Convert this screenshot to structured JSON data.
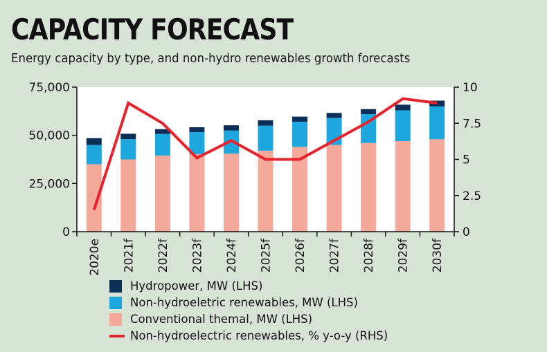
{
  "chart_data": {
    "type": "bar",
    "title": "CAPACITY FORECAST",
    "subtitle": "Energy capacity by type, and non-hydro renewables growth forecasts",
    "categories": [
      "2020e",
      "2021f",
      "2022f",
      "2023f",
      "2024f",
      "2025f",
      "2026f",
      "2027f",
      "2028f",
      "2029f",
      "2030f"
    ],
    "series": [
      {
        "name": "Conventional themal, MW (LHS)",
        "color": "#f5a99a",
        "axis": "left",
        "stack": true,
        "values": [
          35000,
          37500,
          39500,
          40200,
          40500,
          42000,
          44000,
          45000,
          46000,
          47000,
          48000
        ]
      },
      {
        "name": "Non-hydroeletric renewables, MW (LHS)",
        "color": "#1ea6df",
        "axis": "left",
        "stack": true,
        "values": [
          10000,
          10500,
          11200,
          11500,
          12000,
          13000,
          13000,
          14000,
          15000,
          16000,
          17000
        ]
      },
      {
        "name": "Hydropower, MW (LHS)",
        "color": "#0d2f57",
        "axis": "left",
        "stack": true,
        "values": [
          3500,
          2800,
          2500,
          2500,
          2700,
          2800,
          2700,
          2600,
          2600,
          2900,
          3000
        ]
      },
      {
        "name": "Non-hydroelectric renewables, % y-o-y (RHS)",
        "color": "#e4232d",
        "axis": "right",
        "type": "line",
        "values": [
          1.5,
          8.9,
          7.5,
          5.1,
          6.3,
          5.0,
          5.0,
          6.3,
          7.6,
          9.2,
          8.9
        ]
      }
    ],
    "y_left": {
      "min": 0,
      "max": 75000,
      "ticks": [
        0,
        25000,
        50000,
        75000
      ],
      "tick_labels": [
        "0",
        "25,000",
        "50,000",
        "75,000"
      ]
    },
    "y_right": {
      "min": 0,
      "max": 10,
      "ticks": [
        0,
        2.5,
        5,
        7.5,
        10
      ],
      "tick_labels": [
        "0",
        "2.5",
        "5",
        "7.5",
        "10"
      ]
    },
    "grid": false,
    "legend_position": "bottom-left",
    "legend": [
      {
        "label": "Hydropower, MW (LHS)",
        "color": "#0d2f57",
        "kind": "box"
      },
      {
        "label": "Non-hydroeletric renewables, MW (LHS)",
        "color": "#1ea6df",
        "kind": "box"
      },
      {
        "label": "Conventional themal, MW (LHS)",
        "color": "#f5a99a",
        "kind": "box"
      },
      {
        "label": "Non-hydroelectric renewables, % y-o-y (RHS)",
        "color": "#e4232d",
        "kind": "line"
      }
    ]
  }
}
